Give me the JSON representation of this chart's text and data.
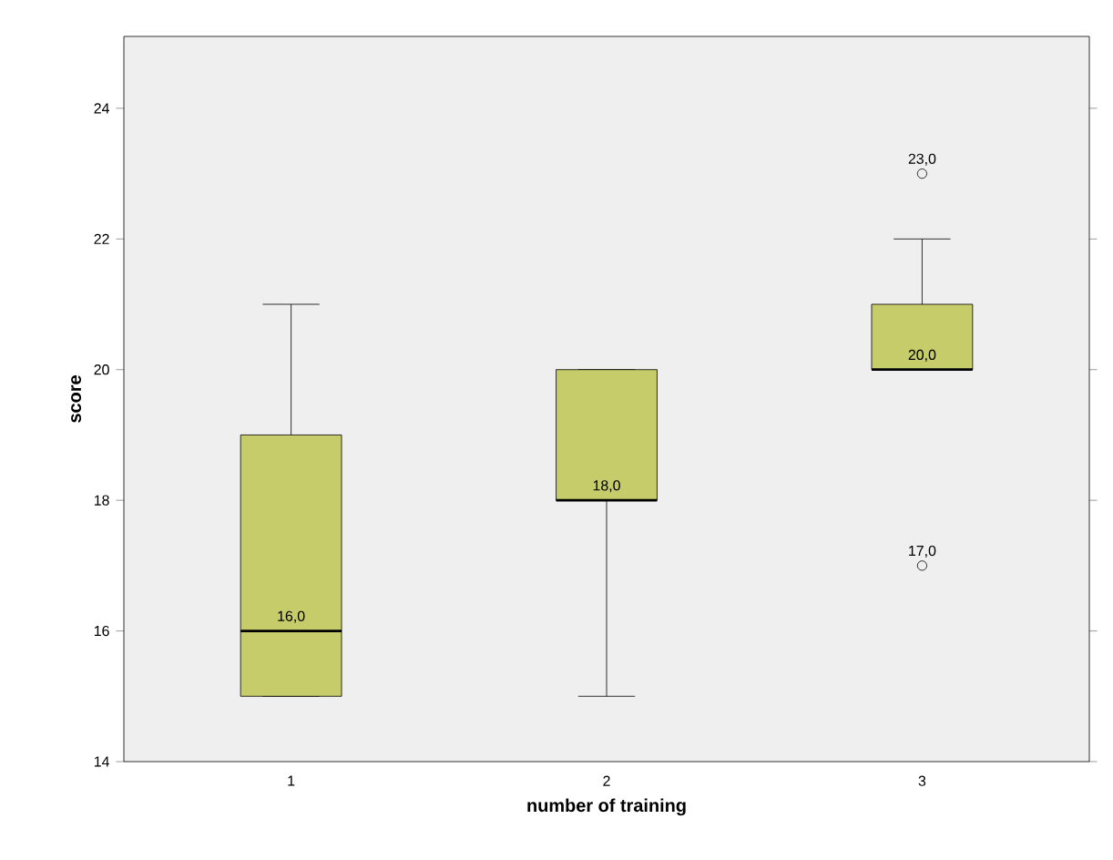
{
  "chart_data": {
    "type": "box",
    "xlabel": "number of training",
    "ylabel": "score",
    "categories": [
      "1",
      "2",
      "3"
    ],
    "boxes": [
      {
        "low": 15,
        "q1": 15,
        "median": 16,
        "q3": 19,
        "high": 21
      },
      {
        "low": 15,
        "q1": 18,
        "median": 18,
        "q3": 20,
        "high": 20
      },
      {
        "low": 20,
        "q1": 20,
        "median": 20,
        "q3": 21,
        "high": 22,
        "outliers": [
          23,
          17
        ]
      }
    ],
    "color": "#c6cc6a",
    "ylim": [
      14,
      25.1
    ],
    "yticks": [
      14,
      16,
      18,
      20,
      22,
      24
    ],
    "grid": false,
    "marker": "circle",
    "annotations": [
      "16,0",
      "18,0",
      "20,0",
      "23,0",
      "17,0"
    ]
  }
}
